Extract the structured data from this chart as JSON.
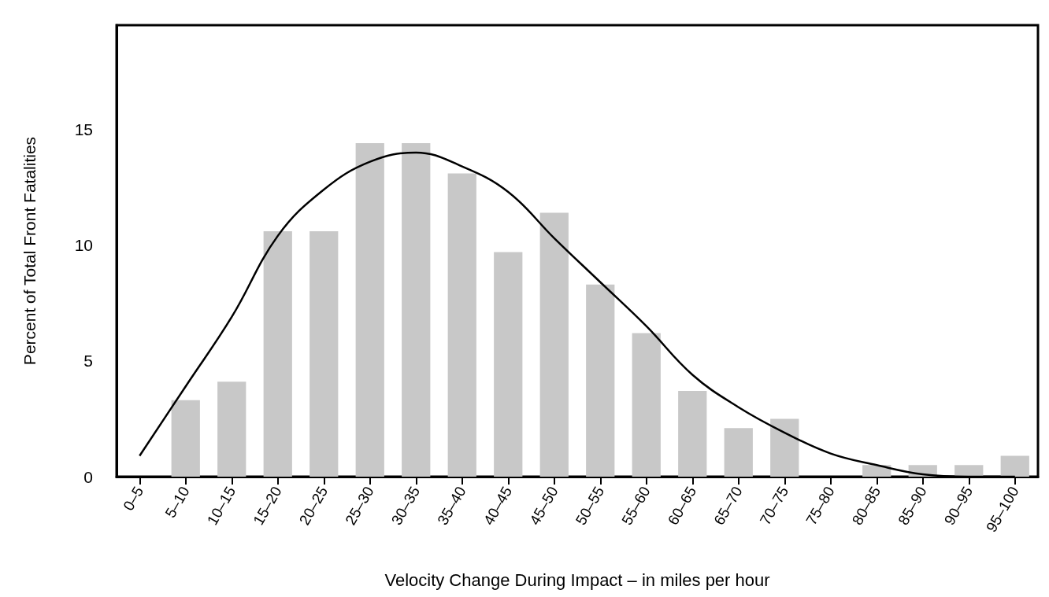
{
  "chart_data": {
    "type": "bar",
    "xlabel": "Velocity Change During Impact – in miles per hour",
    "ylabel": "Percent of Total Front Fatalities",
    "categories": [
      "0–5",
      "5–10",
      "10–15",
      "15–20",
      "20–25",
      "25–30",
      "30–35",
      "35–40",
      "40–45",
      "45–50",
      "50–55",
      "55–60",
      "60–65",
      "65–70",
      "70–75",
      "75–80",
      "80–85",
      "85–90",
      "90–95",
      "95–100"
    ],
    "series": [
      {
        "color": "#c8c8c8",
        "values": [
          0,
          3.3,
          4.1,
          10.6,
          10.6,
          14.4,
          14.4,
          13.1,
          9.7,
          11.4,
          8.3,
          6.2,
          3.7,
          2.1,
          2.5,
          0,
          0.5,
          0.5,
          0.5,
          0.9
        ]
      },
      {
        "type": "line",
        "color": "#000000",
        "values": [
          0.9,
          3.9,
          6.9,
          10.4,
          12.4,
          13.6,
          14.0,
          13.4,
          12.3,
          10.3,
          8.4,
          6.5,
          4.4,
          3.0,
          1.9,
          1.0,
          0.5,
          0.1,
          0,
          0
        ]
      }
    ],
    "ylim": [
      0,
      19.5
    ],
    "yticks": [
      0,
      5,
      10,
      15
    ],
    "grid": false,
    "marker": "none",
    "line_style": "solid"
  }
}
